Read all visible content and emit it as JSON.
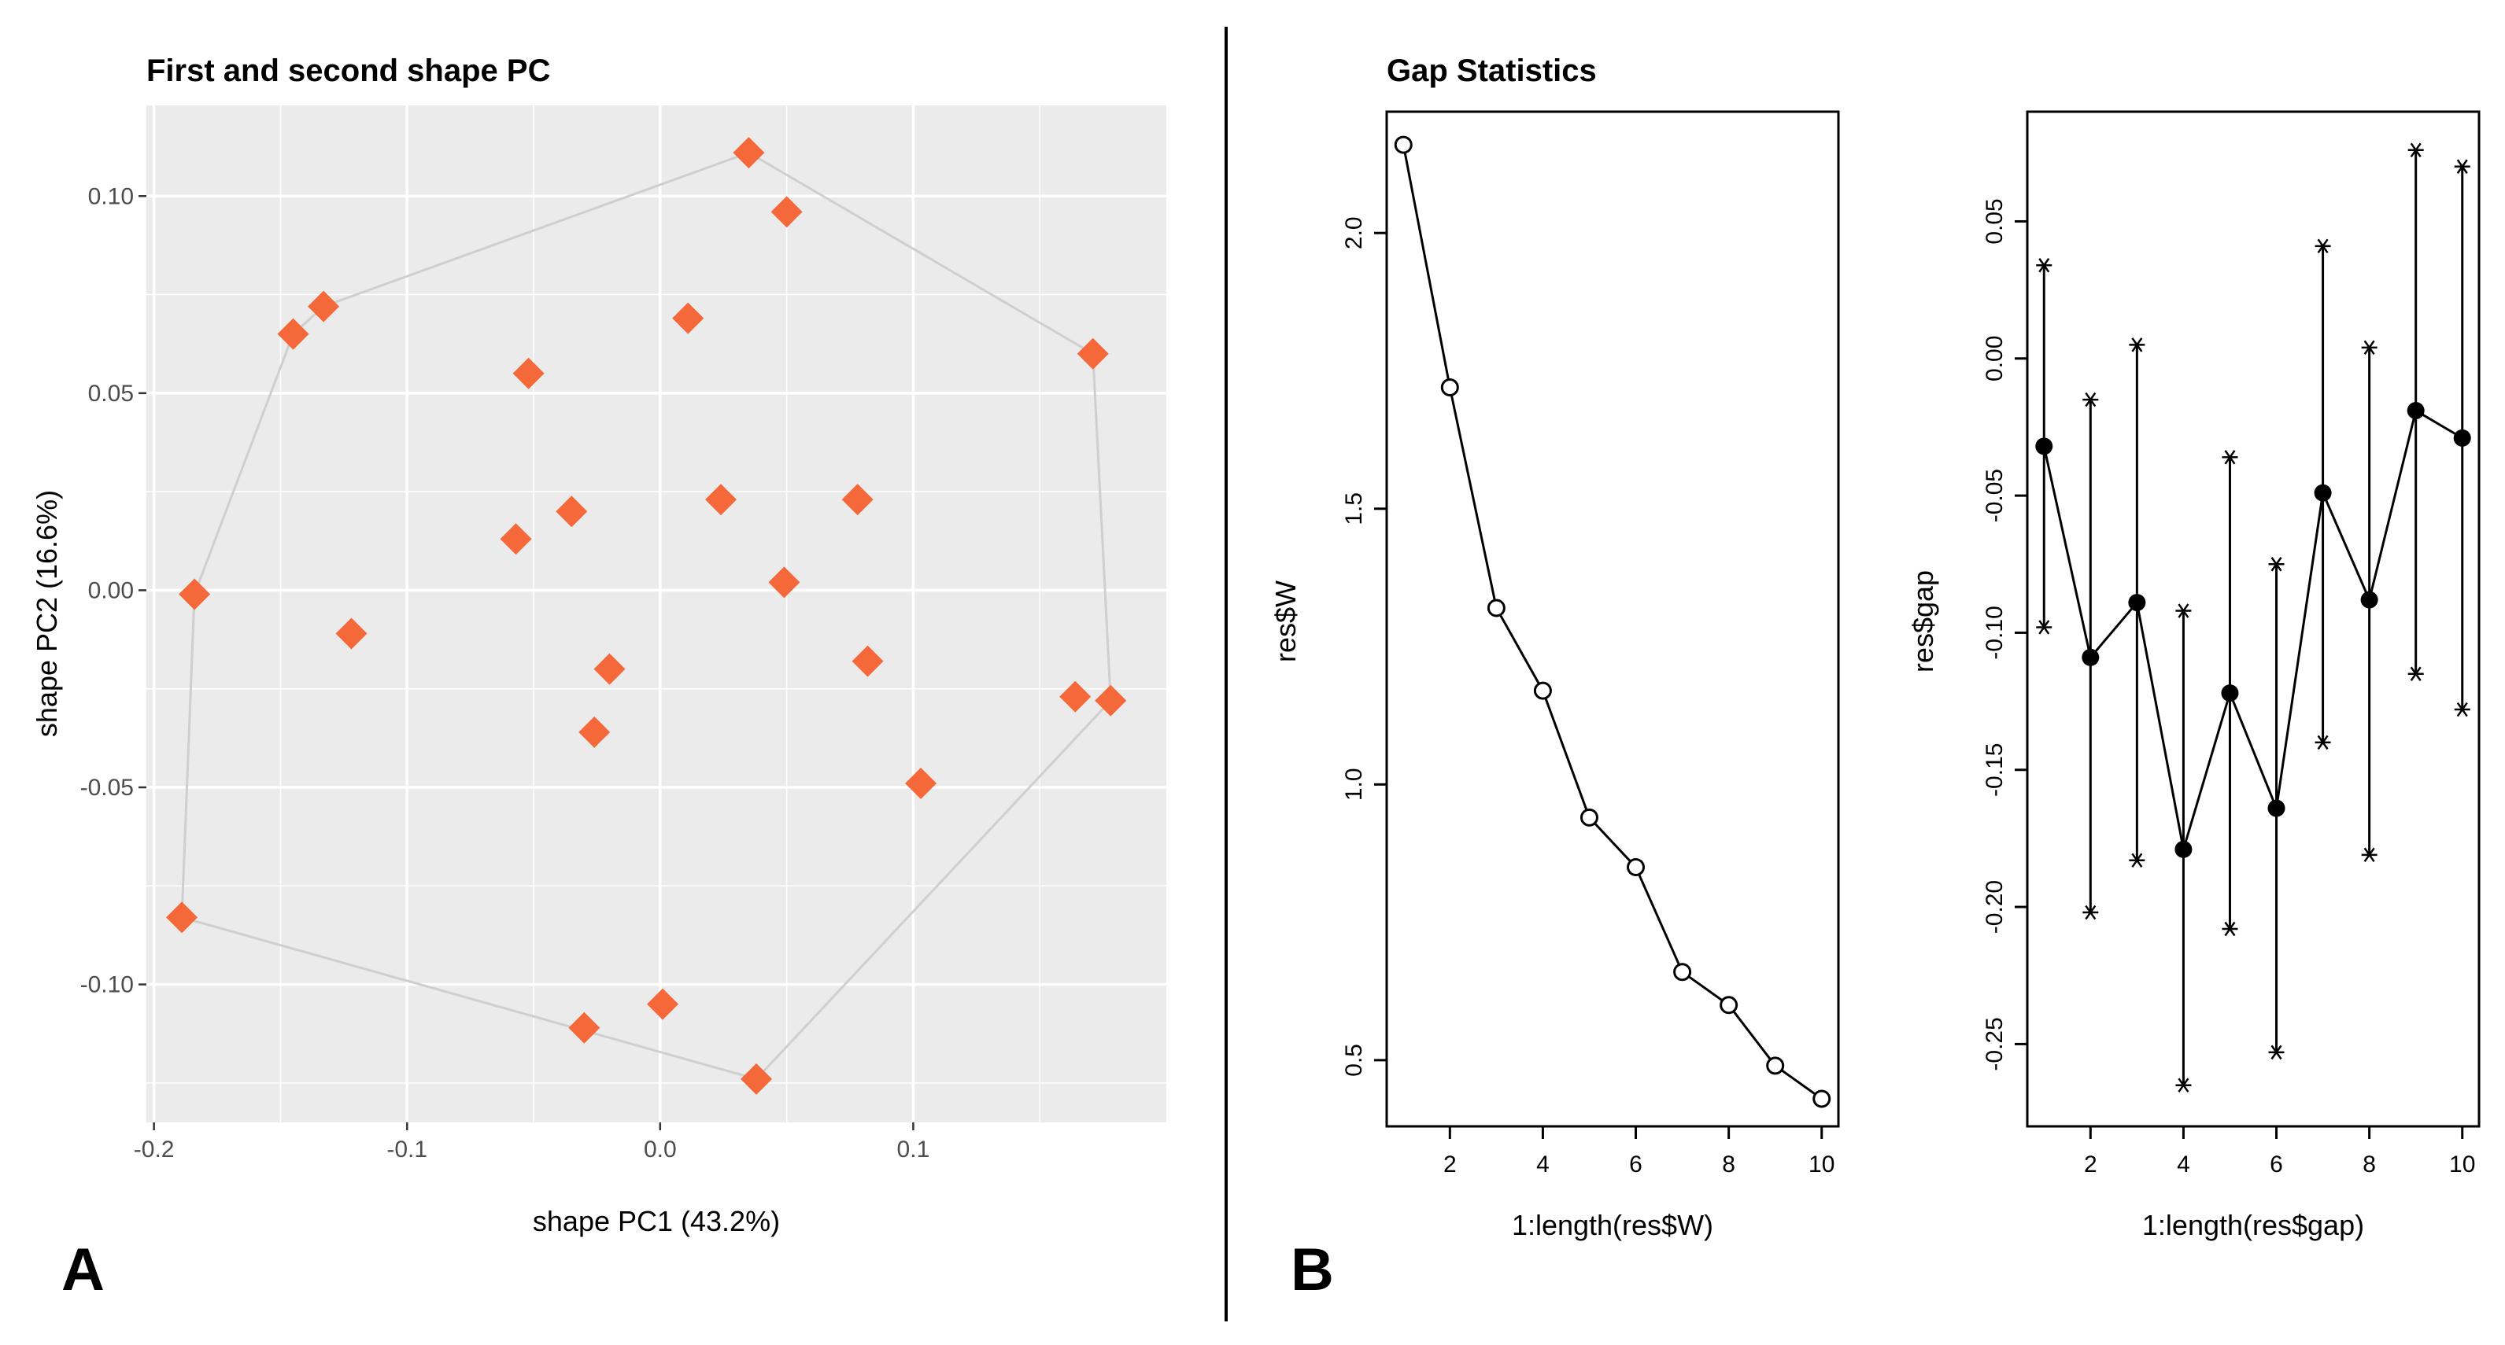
{
  "panels": {
    "left_letter": "A",
    "right_letter": "B"
  },
  "colors": {
    "point": "#F4683A",
    "panel_bg": "#EBEBEB",
    "hull": "#CFCFCF",
    "grid": "#FFFFFF",
    "ink": "#000000"
  },
  "chart_data": [
    {
      "type": "scatter",
      "title": "First and second shape PC",
      "xlabel": "shape PC1 (43.2%)",
      "ylabel": "shape PC2 (16.6%)",
      "xlim": [
        -0.203,
        0.2
      ],
      "ylim": [
        -0.135,
        0.123
      ],
      "xticks": [
        -0.2,
        -0.1,
        0.0,
        0.1
      ],
      "xtick_labels": [
        "-0.2",
        "-0.1",
        "0.0",
        "0.1"
      ],
      "yticks": [
        0.1,
        0.05,
        0.0,
        -0.05,
        -0.1
      ],
      "ytick_labels": [
        "0.10",
        "0.05",
        "0.00",
        "-0.05",
        "-0.10"
      ],
      "grid": true,
      "marker": "diamond",
      "points": [
        {
          "x": 0.035,
          "y": 0.111
        },
        {
          "x": 0.05,
          "y": 0.096
        },
        {
          "x": -0.133,
          "y": 0.072
        },
        {
          "x": -0.145,
          "y": 0.065
        },
        {
          "x": 0.011,
          "y": 0.069
        },
        {
          "x": 0.171,
          "y": 0.06
        },
        {
          "x": -0.052,
          "y": 0.055
        },
        {
          "x": -0.057,
          "y": 0.013
        },
        {
          "x": -0.035,
          "y": 0.02
        },
        {
          "x": 0.024,
          "y": 0.023
        },
        {
          "x": 0.078,
          "y": 0.023
        },
        {
          "x": -0.184,
          "y": -0.001
        },
        {
          "x": 0.049,
          "y": 0.002
        },
        {
          "x": -0.122,
          "y": -0.011
        },
        {
          "x": -0.02,
          "y": -0.02
        },
        {
          "x": 0.082,
          "y": -0.018
        },
        {
          "x": -0.026,
          "y": -0.036
        },
        {
          "x": 0.164,
          "y": -0.027
        },
        {
          "x": 0.178,
          "y": -0.028
        },
        {
          "x": 0.103,
          "y": -0.049
        },
        {
          "x": -0.189,
          "y": -0.083
        },
        {
          "x": 0.001,
          "y": -0.105
        },
        {
          "x": -0.03,
          "y": -0.111
        },
        {
          "x": 0.038,
          "y": -0.124
        }
      ],
      "hull": [
        {
          "x": 0.035,
          "y": 0.111
        },
        {
          "x": 0.171,
          "y": 0.06
        },
        {
          "x": 0.178,
          "y": -0.028
        },
        {
          "x": 0.038,
          "y": -0.124
        },
        {
          "x": -0.189,
          "y": -0.083
        },
        {
          "x": -0.184,
          "y": -0.001
        },
        {
          "x": -0.145,
          "y": 0.065
        },
        {
          "x": -0.133,
          "y": 0.072
        }
      ]
    },
    {
      "type": "line",
      "title": "Gap Statistics",
      "xlabel": "1:length(res$W)",
      "ylabel": "res$W",
      "xlim": [
        0.64,
        10.36
      ],
      "ylim": [
        0.38,
        2.22
      ],
      "xticks": [
        2,
        4,
        6,
        8,
        10
      ],
      "xtick_labels": [
        "2",
        "4",
        "6",
        "8",
        "10"
      ],
      "yticks": [
        0.5,
        1.0,
        1.5,
        2.0
      ],
      "ytick_labels": [
        "0.5",
        "1.0",
        "1.5",
        "2.0"
      ],
      "marker": "open-circle",
      "x": [
        1,
        2,
        3,
        4,
        5,
        6,
        7,
        8,
        9,
        10
      ],
      "y": [
        2.16,
        1.72,
        1.32,
        1.17,
        0.94,
        0.85,
        0.66,
        0.6,
        0.49,
        0.43
      ]
    },
    {
      "type": "line",
      "title": "",
      "xlabel": "1:length(res$gap)",
      "ylabel": "res$gap",
      "xlim": [
        0.64,
        10.36
      ],
      "ylim": [
        -0.28,
        0.09
      ],
      "xticks": [
        2,
        4,
        6,
        8,
        10
      ],
      "xtick_labels": [
        "2",
        "4",
        "6",
        "8",
        "10"
      ],
      "yticks": [
        0.05,
        0.0,
        -0.05,
        -0.1,
        -0.15,
        -0.2,
        -0.25
      ],
      "ytick_labels": [
        "0.05",
        "0.00",
        "-0.05",
        "-0.10",
        "-0.15",
        "-0.20",
        "-0.25"
      ],
      "marker": "filled-circle",
      "error_marker": "asterisk",
      "x": [
        1,
        2,
        3,
        4,
        5,
        6,
        7,
        8,
        9,
        10
      ],
      "y": [
        -0.032,
        -0.109,
        -0.089,
        -0.179,
        -0.122,
        -0.164,
        -0.049,
        -0.088,
        -0.019,
        -0.029
      ],
      "upper": [
        0.034,
        -0.015,
        0.005,
        -0.092,
        -0.036,
        -0.075,
        0.041,
        0.004,
        0.076,
        0.07
      ],
      "lower": [
        -0.098,
        -0.202,
        -0.183,
        -0.265,
        -0.208,
        -0.253,
        -0.14,
        -0.181,
        -0.115,
        -0.128
      ]
    }
  ]
}
